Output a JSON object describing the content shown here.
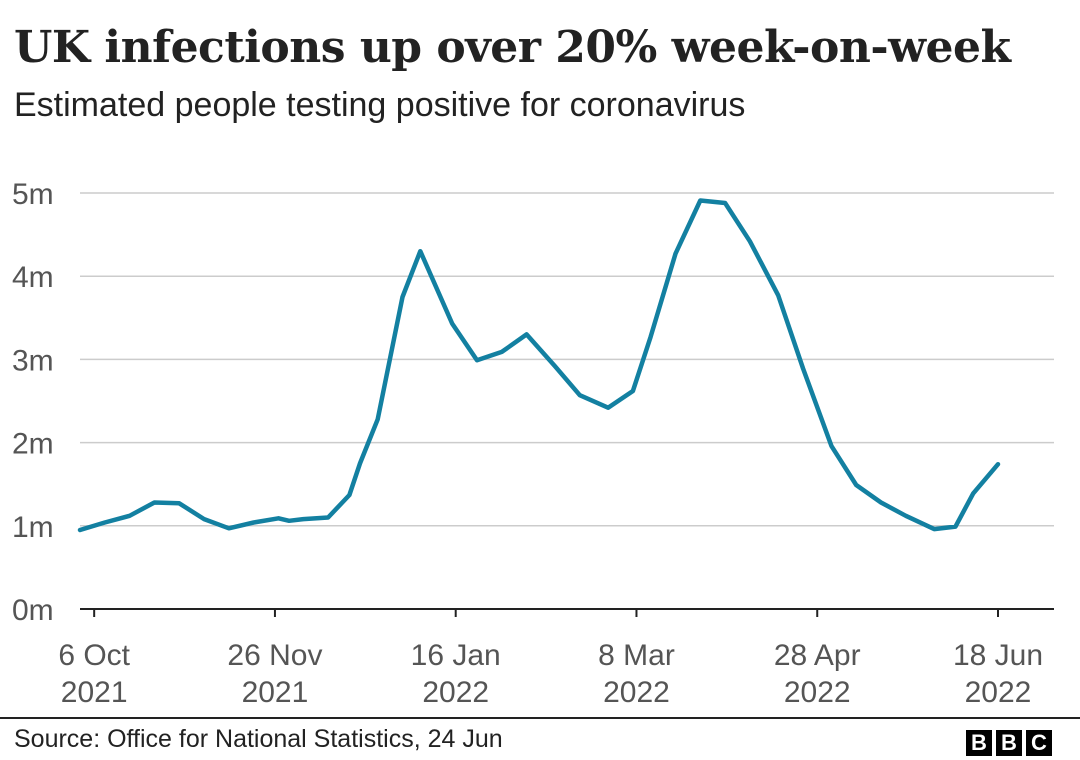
{
  "title": "UK infections up over 20% week-on-week",
  "subtitle": "Estimated people testing positive for coronavirus",
  "source": "Source: Office for National Statistics, 24 Jun",
  "logo": [
    "B",
    "B",
    "C"
  ],
  "colors": {
    "line": "#1380A1",
    "grid": "#cccccc",
    "axis": "#222222",
    "tick_text": "#555555"
  },
  "chart_data": {
    "type": "line",
    "title": "UK infections up over 20% week-on-week",
    "xlabel": "",
    "ylabel": "",
    "ylim": [
      0,
      5
    ],
    "grid": true,
    "y_ticks": [
      {
        "value": 0,
        "label": "0m"
      },
      {
        "value": 1,
        "label": "1m"
      },
      {
        "value": 2,
        "label": "2m"
      },
      {
        "value": 3,
        "label": "3m"
      },
      {
        "value": 4,
        "label": "4m"
      },
      {
        "value": 5,
        "label": "5m"
      }
    ],
    "x_ticks": [
      {
        "date": "2021-10-06",
        "label": [
          "6 Oct",
          "2021"
        ]
      },
      {
        "date": "2021-11-26",
        "label": [
          "26 Nov",
          "2021"
        ]
      },
      {
        "date": "2022-01-16",
        "label": [
          "16 Jan",
          "2022"
        ]
      },
      {
        "date": "2022-03-08",
        "label": [
          "8 Mar",
          "2022"
        ]
      },
      {
        "date": "2022-04-28",
        "label": [
          "28 Apr",
          "2022"
        ]
      },
      {
        "date": "2022-06-18",
        "label": [
          "18 Jun",
          "2022"
        ]
      }
    ],
    "x_range": [
      "2021-10-02",
      "2022-06-18"
    ],
    "series": [
      {
        "values_unit": "millions",
        "points": [
          [
            "2021-10-02",
            0.95
          ],
          [
            "2021-10-09",
            1.04
          ],
          [
            "2021-10-16",
            1.12
          ],
          [
            "2021-10-23",
            1.28
          ],
          [
            "2021-10-30",
            1.27
          ],
          [
            "2021-11-06",
            1.08
          ],
          [
            "2021-11-13",
            0.97
          ],
          [
            "2021-11-20",
            1.04
          ],
          [
            "2021-11-27",
            1.09
          ],
          [
            "2021-11-30",
            1.06
          ],
          [
            "2021-12-04",
            1.08
          ],
          [
            "2021-12-11",
            1.1
          ],
          [
            "2021-12-17",
            1.37
          ],
          [
            "2021-12-20",
            1.75
          ],
          [
            "2021-12-25",
            2.28
          ],
          [
            "2022-01-01",
            3.75
          ],
          [
            "2022-01-06",
            4.3
          ],
          [
            "2022-01-15",
            3.43
          ],
          [
            "2022-01-22",
            2.99
          ],
          [
            "2022-01-29",
            3.09
          ],
          [
            "2022-02-05",
            3.3
          ],
          [
            "2022-02-13",
            2.92
          ],
          [
            "2022-02-20",
            2.57
          ],
          [
            "2022-02-28",
            2.42
          ],
          [
            "2022-03-07",
            2.62
          ],
          [
            "2022-03-12",
            3.27
          ],
          [
            "2022-03-19",
            4.27
          ],
          [
            "2022-03-26",
            4.91
          ],
          [
            "2022-04-02",
            4.88
          ],
          [
            "2022-04-09",
            4.42
          ],
          [
            "2022-04-17",
            3.77
          ],
          [
            "2022-04-24",
            2.89
          ],
          [
            "2022-05-02",
            1.96
          ],
          [
            "2022-05-09",
            1.49
          ],
          [
            "2022-05-16",
            1.28
          ],
          [
            "2022-05-23",
            1.12
          ],
          [
            "2022-05-31",
            0.96
          ],
          [
            "2022-06-06",
            0.99
          ],
          [
            "2022-06-11",
            1.39
          ],
          [
            "2022-06-18",
            1.74
          ]
        ]
      }
    ]
  }
}
